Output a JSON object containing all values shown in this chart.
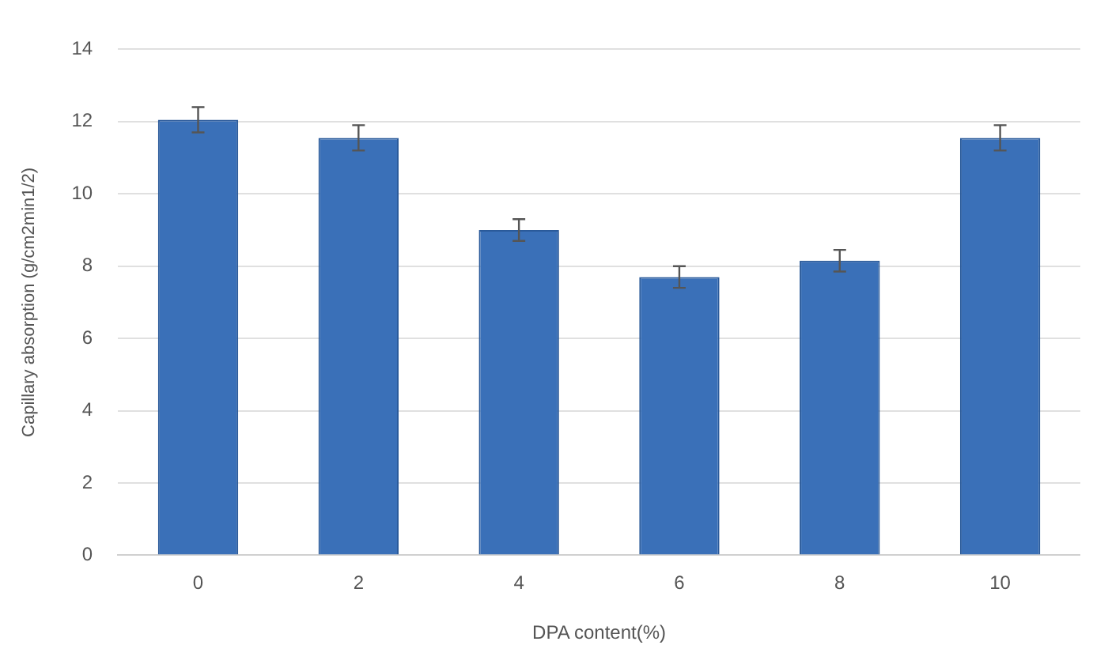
{
  "chart_data": {
    "type": "bar",
    "xlabel": "DPA content(%)",
    "ylabel": "Capillary absorption (g/cm2min1/2)",
    "categories": [
      "0",
      "2",
      "4",
      "6",
      "8",
      "10"
    ],
    "values": [
      12.05,
      11.55,
      9.0,
      7.7,
      8.15,
      11.55
    ],
    "errors": [
      0.35,
      0.35,
      0.3,
      0.3,
      0.3,
      0.35
    ],
    "color": "#3a70b8",
    "ylim": [
      0,
      14
    ],
    "yticks": [
      0,
      2,
      4,
      6,
      8,
      10,
      12,
      14
    ],
    "grid": "y",
    "legend": false
  }
}
